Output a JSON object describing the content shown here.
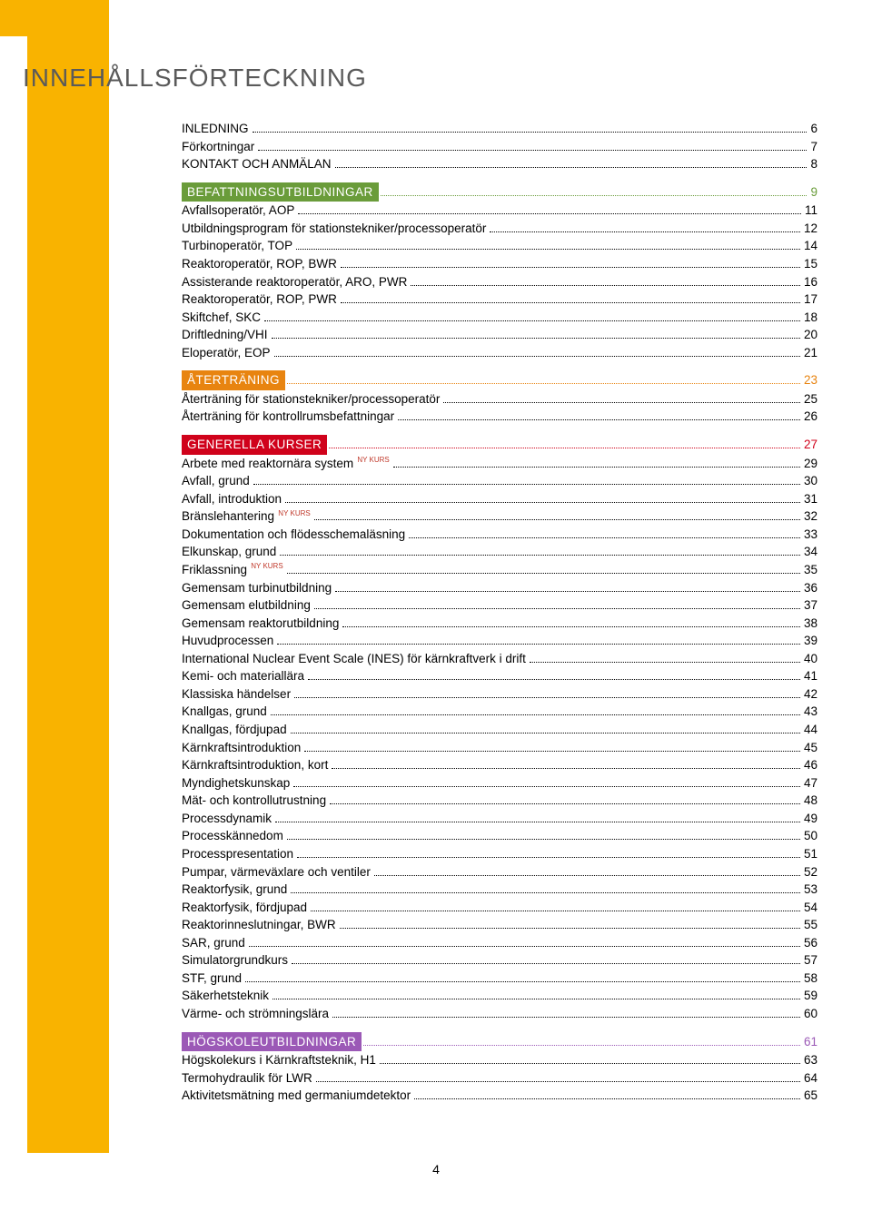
{
  "title": "INNEHÅLLSFÖRTECKNING",
  "page_number": "4",
  "colors": {
    "yellow": "#f9b300",
    "green": "#6a9c3a",
    "orange": "#e88410",
    "red": "#d0021b",
    "purple": "#9b59b6",
    "ny_kurs": "#c0392b"
  },
  "intro": [
    {
      "label": "INLEDNING",
      "page": "6"
    },
    {
      "label": "Förkortningar",
      "page": "7"
    },
    {
      "label": "KONTAKT OCH ANMÄLAN",
      "page": "8"
    }
  ],
  "sections": [
    {
      "head": {
        "label": "BEFATTNINGSUTBILDNINGAR",
        "page": "9",
        "color_key": "green"
      },
      "items": [
        {
          "label": "Avfallsoperatör, AOP",
          "page": "11"
        },
        {
          "label": "Utbildningsprogram för stationstekniker/processoperatör",
          "page": "12"
        },
        {
          "label": "Turbinoperatör, TOP",
          "page": "14"
        },
        {
          "label": "Reaktoroperatör, ROP, BWR",
          "page": "15"
        },
        {
          "label": "Assisterande reaktoroperatör, ARO, PWR",
          "page": "16"
        },
        {
          "label": "Reaktoroperatör, ROP, PWR",
          "page": "17"
        },
        {
          "label": "Skiftchef, SKC",
          "page": "18"
        },
        {
          "label": "Driftledning/VHI",
          "page": "20"
        },
        {
          "label": "Eloperatör, EOP",
          "page": "21"
        }
      ]
    },
    {
      "head": {
        "label": "ÅTERTRÄNING",
        "page": "23",
        "color_key": "orange"
      },
      "items": [
        {
          "label": "Återträning för stationstekniker/processoperatör",
          "page": "25"
        },
        {
          "label": "Återträning för kontrollrumsbefattningar",
          "page": "26"
        }
      ]
    },
    {
      "head": {
        "label": "GENERELLA KURSER",
        "page": "27",
        "color_key": "red"
      },
      "items": [
        {
          "label": "Arbete med reaktornära system",
          "ny": true,
          "page": "29"
        },
        {
          "label": "Avfall, grund",
          "page": "30"
        },
        {
          "label": "Avfall, introduktion",
          "page": "31"
        },
        {
          "label": "Bränslehantering",
          "ny": true,
          "page": "32"
        },
        {
          "label": "Dokumentation och flödesschemaläsning",
          "page": "33"
        },
        {
          "label": "Elkunskap, grund",
          "page": "34"
        },
        {
          "label": "Friklassning",
          "ny": true,
          "page": "35"
        },
        {
          "label": "Gemensam turbinutbildning",
          "page": "36"
        },
        {
          "label": "Gemensam elutbildning",
          "page": "37"
        },
        {
          "label": "Gemensam reaktorutbildning",
          "page": "38"
        },
        {
          "label": "Huvudprocessen",
          "page": "39"
        },
        {
          "label": "International Nuclear Event Scale (INES) för kärnkraftverk i drift",
          "page": "40"
        },
        {
          "label": "Kemi- och materiallära",
          "page": "41"
        },
        {
          "label": "Klassiska händelser",
          "page": "42"
        },
        {
          "label": "Knallgas, grund",
          "page": "43"
        },
        {
          "label": "Knallgas, fördjupad",
          "page": "44"
        },
        {
          "label": "Kärnkraftsintroduktion",
          "page": "45"
        },
        {
          "label": "Kärnkraftsintroduktion, kort",
          "page": "46"
        },
        {
          "label": "Myndighetskunskap",
          "page": "47"
        },
        {
          "label": "Mät- och kontrollutrustning",
          "page": "48"
        },
        {
          "label": "Processdynamik",
          "page": "49"
        },
        {
          "label": "Processkännedom",
          "page": "50"
        },
        {
          "label": "Processpresentation",
          "page": "51"
        },
        {
          "label": "Pumpar, värmeväxlare och ventiler",
          "page": "52"
        },
        {
          "label": "Reaktorfysik, grund",
          "page": "53"
        },
        {
          "label": "Reaktorfysik, fördjupad",
          "page": "54"
        },
        {
          "label": "Reaktorinneslutningar, BWR",
          "page": "55"
        },
        {
          "label": "SAR, grund",
          "page": "56"
        },
        {
          "label": "Simulatorgrundkurs",
          "page": "57"
        },
        {
          "label": "STF, grund",
          "page": "58"
        },
        {
          "label": "Säkerhetsteknik",
          "page": "59"
        },
        {
          "label": "Värme- och strömningslära",
          "page": "60"
        }
      ]
    },
    {
      "head": {
        "label": "HÖGSKOLEUTBILDNINGAR",
        "page": "61",
        "color_key": "purple"
      },
      "items": [
        {
          "label": "Högskolekurs i Kärnkraftsteknik, H1",
          "page": "63"
        },
        {
          "label": "Termohydraulik för LWR",
          "page": "64"
        },
        {
          "label": "Aktivitetsmätning med germaniumdetektor",
          "page": "65"
        }
      ]
    }
  ],
  "ny_kurs_label": "NY KURS"
}
